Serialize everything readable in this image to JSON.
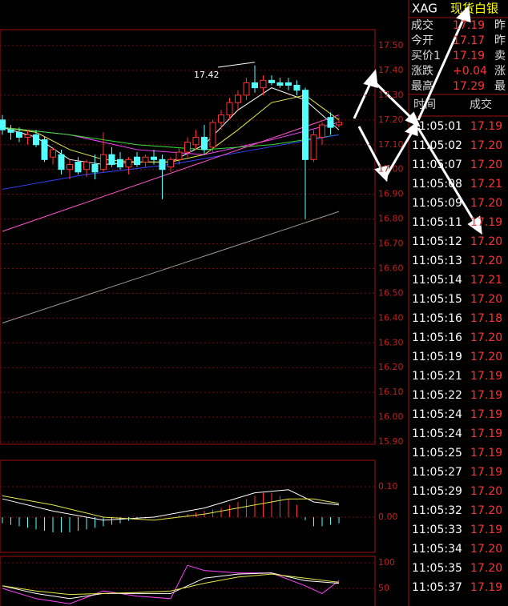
{
  "price_panel": {
    "ylim": [
      15.9,
      17.5
    ],
    "yticks": [
      {
        "value": 17.5,
        "label": "17.50"
      },
      {
        "value": 17.4,
        "label": "17.40"
      },
      {
        "value": 17.3,
        "label": "17.30"
      },
      {
        "value": 17.2,
        "label": "17.20"
      },
      {
        "value": 17.1,
        "label": "17.10"
      },
      {
        "value": 17.0,
        "label": "17.00"
      },
      {
        "value": 16.9,
        "label": "16.90"
      },
      {
        "value": 16.8,
        "label": "16.80"
      },
      {
        "value": 16.7,
        "label": "16.70"
      },
      {
        "value": 16.6,
        "label": "16.60"
      },
      {
        "value": 16.5,
        "label": "16.50"
      },
      {
        "value": 16.4,
        "label": "16.40"
      },
      {
        "value": 16.3,
        "label": "16.30"
      },
      {
        "value": 16.2,
        "label": "16.20"
      },
      {
        "value": 16.1,
        "label": "16.10"
      },
      {
        "value": 16.0,
        "label": "16.00"
      },
      {
        "value": 15.9,
        "label": "15.90"
      }
    ],
    "high_label": "17.42",
    "candles": [
      [
        17.2,
        17.22,
        17.14,
        17.16
      ],
      [
        17.16,
        17.18,
        17.12,
        17.15
      ],
      [
        17.15,
        17.17,
        17.11,
        17.13
      ],
      [
        17.13,
        17.16,
        17.1,
        17.14
      ],
      [
        17.14,
        17.16,
        17.09,
        17.1
      ],
      [
        17.12,
        17.13,
        17.03,
        17.04
      ],
      [
        17.05,
        17.09,
        17.02,
        17.08
      ],
      [
        17.06,
        17.08,
        16.98,
        17.0
      ],
      [
        17.0,
        17.04,
        16.96,
        17.02
      ],
      [
        17.03,
        17.05,
        16.98,
        16.99
      ],
      [
        17.0,
        17.04,
        16.97,
        17.03
      ],
      [
        17.02,
        17.06,
        16.96,
        16.99
      ],
      [
        17.0,
        17.15,
        16.99,
        17.06
      ],
      [
        17.06,
        17.09,
        17.01,
        17.02
      ],
      [
        17.04,
        17.07,
        17.0,
        17.01
      ],
      [
        17.01,
        17.05,
        16.98,
        17.04
      ],
      [
        17.05,
        17.07,
        17.01,
        17.02
      ],
      [
        17.03,
        17.06,
        17.01,
        17.05
      ],
      [
        17.05,
        17.08,
        17.02,
        17.04
      ],
      [
        17.04,
        17.06,
        16.88,
        17.0
      ],
      [
        17.01,
        17.05,
        16.99,
        17.04
      ],
      [
        17.04,
        17.09,
        17.02,
        17.07
      ],
      [
        17.07,
        17.13,
        17.05,
        17.11
      ],
      [
        17.1,
        17.16,
        17.08,
        17.13
      ],
      [
        17.13,
        17.18,
        17.06,
        17.08
      ],
      [
        17.09,
        17.2,
        17.07,
        17.19
      ],
      [
        17.19,
        17.24,
        17.16,
        17.22
      ],
      [
        17.22,
        17.29,
        17.2,
        17.27
      ],
      [
        17.27,
        17.32,
        17.24,
        17.3
      ],
      [
        17.3,
        17.37,
        17.28,
        17.35
      ],
      [
        17.35,
        17.42,
        17.31,
        17.33
      ],
      [
        17.33,
        17.38,
        17.3,
        17.36
      ],
      [
        17.36,
        17.38,
        17.34,
        17.35
      ],
      [
        17.35,
        17.37,
        17.33,
        17.34
      ],
      [
        17.35,
        17.37,
        17.32,
        17.34
      ],
      [
        17.34,
        17.36,
        17.3,
        17.32
      ],
      [
        17.32,
        17.33,
        16.8,
        17.04
      ],
      [
        17.04,
        17.16,
        17.03,
        17.14
      ],
      [
        17.13,
        17.19,
        17.1,
        17.18
      ],
      [
        17.21,
        17.23,
        17.14,
        17.17
      ],
      [
        17.18,
        17.21,
        17.17,
        17.19
      ]
    ],
    "lines": [
      {
        "color": "#ffffff",
        "x": [
          0,
          4,
          8,
          12,
          16,
          20,
          24,
          28,
          32,
          36,
          40
        ],
        "values": [
          17.17,
          17.13,
          17.04,
          17.02,
          17.03,
          17.03,
          17.1,
          17.24,
          17.33,
          17.28,
          17.16
        ]
      },
      {
        "color": "#e8e84a",
        "x": [
          0,
          4,
          8,
          12,
          16,
          20,
          24,
          28,
          32,
          36,
          40
        ],
        "values": [
          17.17,
          17.15,
          17.08,
          17.04,
          17.03,
          17.03,
          17.06,
          17.16,
          17.27,
          17.3,
          17.2
        ]
      },
      {
        "color": "#ff44ff",
        "x": [
          0,
          8,
          16,
          24,
          32,
          40
        ],
        "values": [
          17.17,
          17.14,
          17.08,
          17.06,
          17.12,
          17.19
        ]
      },
      {
        "color": "#33dd33",
        "x": [
          0,
          8,
          16,
          24,
          32,
          40
        ],
        "values": [
          17.17,
          17.14,
          17.1,
          17.08,
          17.1,
          17.14
        ]
      },
      {
        "color": "#3344ff",
        "x": [
          0,
          10,
          20,
          30,
          40
        ],
        "values": [
          16.92,
          16.98,
          17.02,
          17.08,
          17.14
        ]
      },
      {
        "color": "#ff55cc",
        "x": [
          0,
          40
        ],
        "values": [
          16.75,
          17.22
        ]
      },
      {
        "color": "#999999",
        "x": [
          0,
          40
        ],
        "values": [
          16.38,
          16.83
        ]
      }
    ]
  },
  "macd_panel": {
    "yticks": [
      {
        "value": 0.1,
        "label": "0.10"
      },
      {
        "value": 0.0,
        "label": "0.00"
      }
    ],
    "bars": [
      -0.02,
      -0.025,
      -0.03,
      -0.035,
      -0.04,
      -0.045,
      -0.05,
      -0.05,
      -0.05,
      -0.045,
      -0.04,
      -0.035,
      -0.03,
      -0.025,
      -0.02,
      -0.012,
      -0.008,
      -0.004,
      -0.002,
      0.0,
      0.002,
      0.006,
      0.01,
      0.015,
      0.02,
      0.025,
      0.03,
      0.04,
      0.05,
      0.06,
      0.07,
      0.08,
      0.08,
      0.07,
      0.06,
      0.04,
      -0.01,
      -0.03,
      -0.03,
      -0.025,
      -0.02
    ],
    "lines": [
      {
        "color": "#ffffff",
        "x": [
          0,
          6,
          12,
          18,
          24,
          30,
          34,
          37,
          40
        ],
        "values": [
          0.06,
          0.02,
          -0.01,
          0.0,
          0.03,
          0.08,
          0.09,
          0.05,
          0.04
        ]
      },
      {
        "color": "#e8e84a",
        "x": [
          0,
          6,
          12,
          18,
          24,
          30,
          34,
          37,
          40
        ],
        "values": [
          0.07,
          0.04,
          0.0,
          -0.01,
          0.01,
          0.04,
          0.06,
          0.06,
          0.045
        ]
      }
    ]
  },
  "kdj_panel": {
    "yticks": [
      100,
      50
    ],
    "lines": [
      {
        "color": "#ff44ff",
        "x": [
          0,
          4,
          8,
          12,
          16,
          20,
          22,
          24,
          28,
          32,
          36,
          38,
          40
        ],
        "values": [
          50,
          30,
          20,
          45,
          35,
          30,
          95,
          85,
          80,
          80,
          55,
          40,
          65
        ]
      },
      {
        "color": "#ffffff",
        "x": [
          0,
          4,
          8,
          12,
          16,
          20,
          24,
          28,
          32,
          36,
          40
        ],
        "values": [
          55,
          40,
          30,
          40,
          40,
          40,
          70,
          78,
          80,
          65,
          60
        ]
      },
      {
        "color": "#e8e84a",
        "x": [
          0,
          4,
          8,
          12,
          16,
          20,
          24,
          28,
          32,
          36,
          40
        ],
        "values": [
          55,
          45,
          38,
          40,
          42,
          45,
          60,
          72,
          78,
          70,
          62
        ]
      }
    ]
  },
  "quote": {
    "symbol": "XAG",
    "name": "现货白银",
    "rows": [
      [
        "成交",
        "17.19",
        "昨"
      ],
      [
        "今开",
        "17.17",
        "昨"
      ],
      [
        "买价1",
        "17.19",
        "卖"
      ],
      [
        "涨跌",
        "+0.04",
        "涨"
      ],
      [
        "最高",
        "17.29",
        "最"
      ]
    ]
  },
  "ticks_list": {
    "header": [
      "时间",
      "成交"
    ],
    "rows": [
      [
        "11:05:01",
        "17.19"
      ],
      [
        "11:05:02",
        "17.20"
      ],
      [
        "11:05:07",
        "17.20"
      ],
      [
        "11:05:08",
        "17.21"
      ],
      [
        "11:05:09",
        "17.20"
      ],
      [
        "11:05:11",
        "17.19"
      ],
      [
        "11:05:12",
        "17.20"
      ],
      [
        "11:05:13",
        "17.20"
      ],
      [
        "11:05:14",
        "17.21"
      ],
      [
        "11:05:15",
        "17.20"
      ],
      [
        "11:05:16",
        "17.18"
      ],
      [
        "11:05:16",
        "17.20"
      ],
      [
        "11:05:19",
        "17.20"
      ],
      [
        "11:05:21",
        "17.19"
      ],
      [
        "11:05:22",
        "17.19"
      ],
      [
        "11:05:24",
        "17.19"
      ],
      [
        "11:05:24",
        "17.19"
      ],
      [
        "11:05:25",
        "17.19"
      ],
      [
        "11:05:27",
        "17.19"
      ],
      [
        "11:05:29",
        "17.20"
      ],
      [
        "11:05:32",
        "17.20"
      ],
      [
        "11:05:33",
        "17.19"
      ],
      [
        "11:05:34",
        "17.20"
      ],
      [
        "11:05:35",
        "17.20"
      ],
      [
        "11:05:37",
        "17.19"
      ]
    ]
  }
}
